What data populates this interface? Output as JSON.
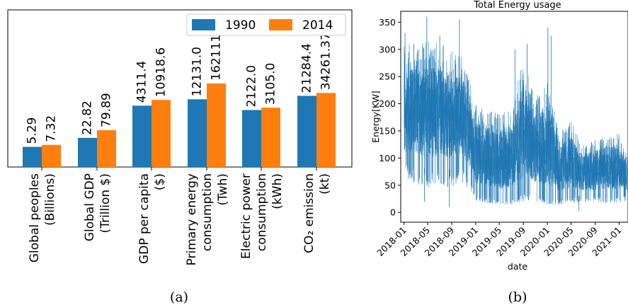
{
  "chart_data": [
    {
      "type": "bar",
      "categories": [
        [
          "Global peoples",
          "(Billions)"
        ],
        [
          "Global GDP",
          "(Trillion $)"
        ],
        [
          "GDP per capita",
          "($)"
        ],
        [
          "Primary energy",
          "consumption",
          "(Twh)"
        ],
        [
          "Electric power",
          "consumption",
          "(kWh)"
        ],
        [
          "CO₂ emission",
          "(kt)"
        ]
      ],
      "series": [
        {
          "name": "1990",
          "values": [
            5.29,
            22.82,
            4311.4,
            12131.0,
            2122.0,
            21284.4
          ],
          "labels": [
            "5.29",
            "22.82",
            "4311.4",
            "12131.0",
            "2122.0",
            "21284.4"
          ],
          "color": "#1f77b4"
        },
        {
          "name": "2014",
          "values": [
            7.32,
            79.89,
            10918.6,
            162111.0,
            3105.0,
            34261.37
          ],
          "labels": [
            "7.32",
            "79.89",
            "10918.6",
            "162111.0",
            "3105.0",
            "34261.37"
          ],
          "color": "#ff7f0e"
        }
      ],
      "yscale": "log",
      "legend": "top-right",
      "grid": false,
      "caption": "(a)"
    },
    {
      "type": "line",
      "title": "Total Energy usage",
      "xlabel": "date",
      "ylabel": "Energy[KW]",
      "xlim": [
        "2017-12-15",
        "2021-02-15"
      ],
      "ylim": [
        -18,
        370
      ],
      "yticks": [
        0,
        50,
        100,
        150,
        200,
        250,
        300,
        350
      ],
      "xticks": [
        "2018-01",
        "2018-05",
        "2018-09",
        "2019-01",
        "2019-05",
        "2019-09",
        "2020-01",
        "2020-05",
        "2020-09",
        "2021-01"
      ],
      "color": "#1f77b4",
      "grid": false,
      "envelope": [
        {
          "date": "2018-01-01",
          "low": 80,
          "high": 290
        },
        {
          "date": "2018-03-01",
          "low": 75,
          "high": 300
        },
        {
          "date": "2018-05-01",
          "low": 65,
          "high": 300
        },
        {
          "date": "2018-07-01",
          "low": 70,
          "high": 300
        },
        {
          "date": "2018-09-01",
          "low": 65,
          "high": 290
        },
        {
          "date": "2018-11-01",
          "low": 75,
          "high": 270
        },
        {
          "date": "2019-01-01",
          "low": 30,
          "high": 190
        },
        {
          "date": "2019-03-01",
          "low": 25,
          "high": 180
        },
        {
          "date": "2019-05-01",
          "low": 20,
          "high": 175
        },
        {
          "date": "2019-07-01",
          "low": 20,
          "high": 180
        },
        {
          "date": "2019-09-01",
          "low": 30,
          "high": 270
        },
        {
          "date": "2019-11-01",
          "low": 30,
          "high": 200
        },
        {
          "date": "2020-01-01",
          "low": 20,
          "high": 230
        },
        {
          "date": "2020-03-01",
          "low": 20,
          "high": 140
        },
        {
          "date": "2020-05-01",
          "low": 25,
          "high": 160
        },
        {
          "date": "2020-07-01",
          "low": 25,
          "high": 120
        },
        {
          "date": "2020-09-01",
          "low": 25,
          "high": 130
        },
        {
          "date": "2020-11-01",
          "low": 25,
          "high": 140
        },
        {
          "date": "2021-01-01",
          "low": 25,
          "high": 140
        },
        {
          "date": "2021-02-10",
          "low": 30,
          "high": 100
        }
      ],
      "spikes": [
        {
          "date": "2018-01-06",
          "value": 330
        },
        {
          "date": "2018-02-20",
          "value": 310
        },
        {
          "date": "2018-04-27",
          "value": 360
        },
        {
          "date": "2018-07-02",
          "value": 325
        },
        {
          "date": "2018-10-10",
          "value": 355
        },
        {
          "date": "2019-07-20",
          "value": 300
        },
        {
          "date": "2019-09-20",
          "value": 310
        },
        {
          "date": "2020-01-04",
          "value": 340
        },
        {
          "date": "2020-01-20",
          "value": 325
        },
        {
          "date": "2018-08-20",
          "value": 10
        },
        {
          "date": "2018-04-15",
          "value": 20
        },
        {
          "date": "2020-03-15",
          "value": 15
        },
        {
          "date": "2020-06-10",
          "value": 2
        }
      ],
      "caption": "(b)"
    }
  ]
}
